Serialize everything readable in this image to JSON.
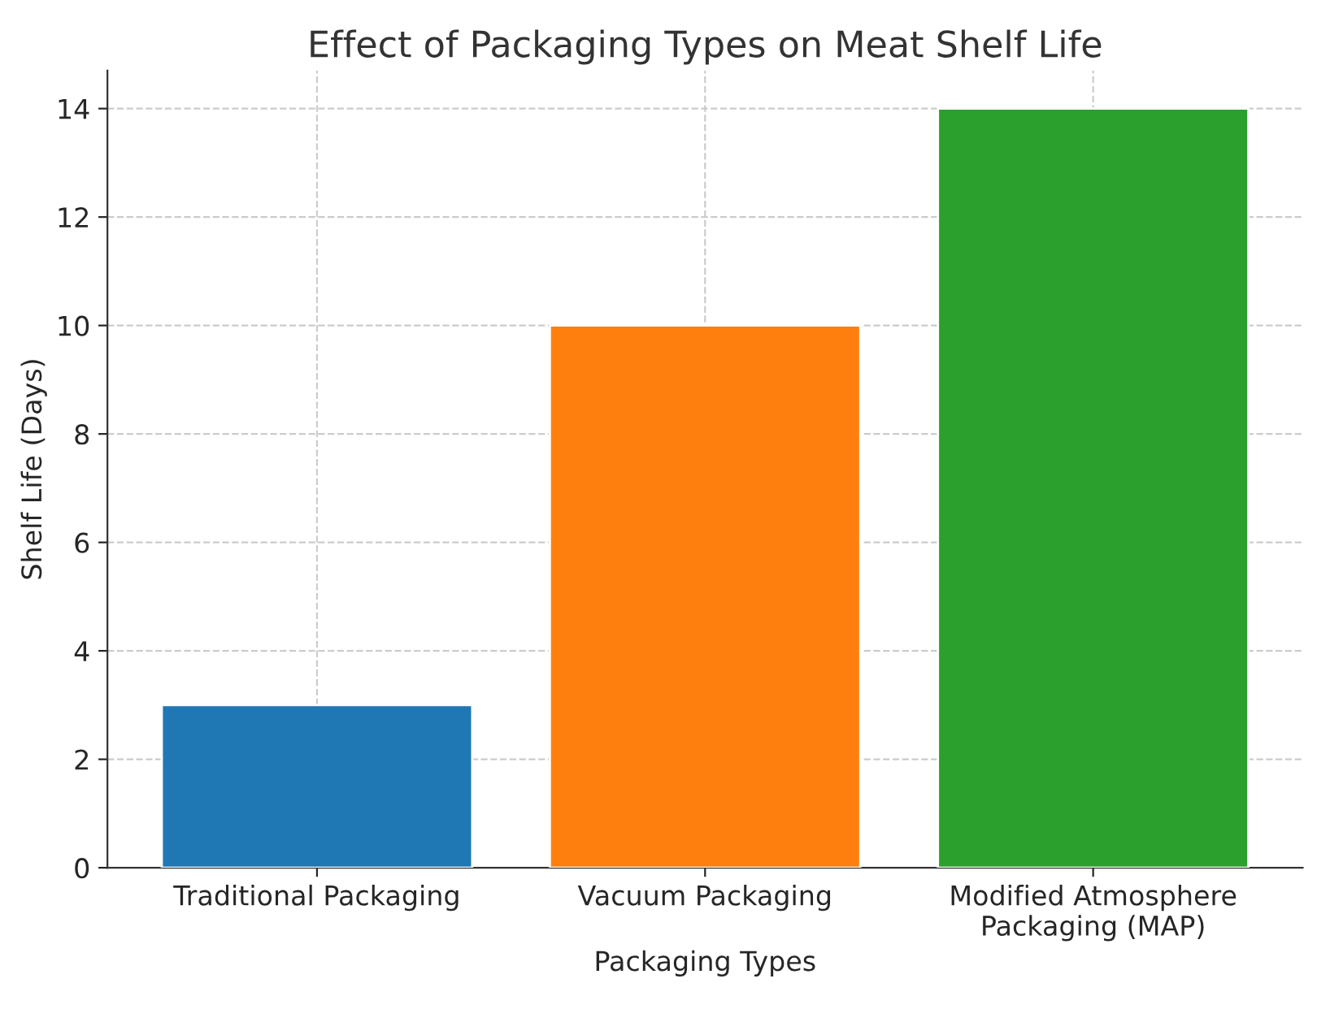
{
  "chart_data": {
    "type": "bar",
    "title": "Effect of Packaging Types on Meat Shelf Life",
    "xlabel": "Packaging Types",
    "ylabel": "Shelf Life (Days)",
    "categories": [
      "Traditional Packaging",
      "Vacuum Packaging",
      "Modified Atmosphere Packaging (MAP)"
    ],
    "values": [
      3,
      10,
      14
    ],
    "colors": [
      "#1f77b4",
      "#ff7f0e",
      "#2ca02c"
    ],
    "ylim": [
      0,
      14.7
    ],
    "yticks": [
      0,
      2,
      4,
      6,
      8,
      10,
      12,
      14
    ],
    "grid": true
  }
}
